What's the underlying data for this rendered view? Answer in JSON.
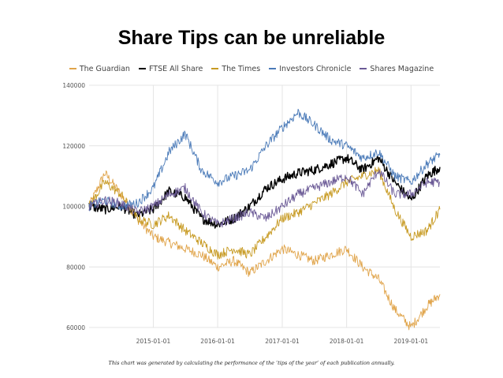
{
  "title": "Share Tips can be unreliable",
  "caption": "This chart was generated by calculating the performance of the ‘tips of the year’ of each publication annually.",
  "chart_data": {
    "type": "line",
    "title": "Share Tips can be unreliable",
    "xlabel": "",
    "ylabel": "",
    "xlim": [
      "2014-01-02",
      "2019-06-14"
    ],
    "ylim": [
      60000,
      140000
    ],
    "grid": true,
    "legend_position": "top-center",
    "x_ticks": [
      "2015-01-01",
      "2016-01-01",
      "2017-01-01",
      "2018-01-01",
      "2019-01-01"
    ],
    "y_ticks": [
      60000,
      80000,
      100000,
      120000,
      140000
    ],
    "series": [
      {
        "name": "The Guardian",
        "color": "#e0a44a",
        "x": [
          "2014-01-02",
          "2014-04-01",
          "2014-07-01",
          "2014-10-01",
          "2015-01-01",
          "2015-04-01",
          "2015-07-01",
          "2015-10-01",
          "2016-01-01",
          "2016-04-01",
          "2016-07-01",
          "2016-10-01",
          "2017-01-01",
          "2017-04-01",
          "2017-07-01",
          "2017-10-01",
          "2018-01-01",
          "2018-04-01",
          "2018-07-01",
          "2018-10-01",
          "2019-01-01",
          "2019-04-01",
          "2019-06-14"
        ],
        "values": [
          100000,
          111000,
          104000,
          96000,
          90000,
          88000,
          86000,
          84000,
          80000,
          82000,
          78000,
          82000,
          86000,
          84000,
          82000,
          84000,
          86000,
          80000,
          76000,
          66000,
          60000,
          67000,
          71000
        ]
      },
      {
        "name": "FTSE All Share",
        "color": "#000000",
        "x": [
          "2014-01-02",
          "2014-04-01",
          "2014-07-01",
          "2014-10-01",
          "2015-01-01",
          "2015-04-01",
          "2015-07-01",
          "2015-10-01",
          "2016-01-01",
          "2016-04-01",
          "2016-07-01",
          "2016-10-01",
          "2017-01-01",
          "2017-04-01",
          "2017-07-01",
          "2017-10-01",
          "2018-01-01",
          "2018-04-01",
          "2018-07-01",
          "2018-10-01",
          "2019-01-01",
          "2019-04-01",
          "2019-06-14"
        ],
        "values": [
          100000,
          99000,
          100000,
          97000,
          99000,
          105000,
          103000,
          96000,
          94000,
          96000,
          100000,
          106000,
          109000,
          111000,
          112000,
          114000,
          116000,
          112000,
          116000,
          108000,
          102000,
          110000,
          113000
        ]
      },
      {
        "name": "The Times",
        "color": "#c79a22",
        "x": [
          "2014-01-02",
          "2014-04-01",
          "2014-07-01",
          "2014-10-01",
          "2015-01-01",
          "2015-04-01",
          "2015-07-01",
          "2015-10-01",
          "2016-01-01",
          "2016-04-01",
          "2016-07-01",
          "2016-10-01",
          "2017-01-01",
          "2017-04-01",
          "2017-07-01",
          "2017-10-01",
          "2018-01-01",
          "2018-04-01",
          "2018-07-01",
          "2018-10-01",
          "2019-01-01",
          "2019-04-01",
          "2019-06-14"
        ],
        "values": [
          100000,
          108000,
          104000,
          96000,
          94000,
          97000,
          92000,
          88000,
          84000,
          86000,
          84000,
          90000,
          96000,
          98000,
          101000,
          104000,
          108000,
          110000,
          112000,
          99000,
          90000,
          92000,
          99000
        ]
      },
      {
        "name": "Investors Chronicle",
        "color": "#4a7ab8",
        "x": [
          "2014-01-02",
          "2014-04-01",
          "2014-07-01",
          "2014-10-01",
          "2015-01-01",
          "2015-04-01",
          "2015-07-01",
          "2015-10-01",
          "2016-01-01",
          "2016-04-01",
          "2016-07-01",
          "2016-10-01",
          "2017-01-01",
          "2017-04-01",
          "2017-07-01",
          "2017-10-01",
          "2018-01-01",
          "2018-04-01",
          "2018-07-01",
          "2018-10-01",
          "2019-01-01",
          "2019-04-01",
          "2019-06-14"
        ],
        "values": [
          100000,
          102000,
          100000,
          101000,
          106000,
          118000,
          124000,
          112000,
          108000,
          110000,
          112000,
          120000,
          126000,
          131000,
          127000,
          122000,
          120000,
          116000,
          118000,
          110000,
          108000,
          114000,
          117000
        ]
      },
      {
        "name": "Shares Magazine",
        "color": "#6b5a96",
        "x": [
          "2014-01-02",
          "2014-04-01",
          "2014-07-01",
          "2014-10-01",
          "2015-01-01",
          "2015-04-01",
          "2015-07-01",
          "2015-10-01",
          "2016-01-01",
          "2016-04-01",
          "2016-07-01",
          "2016-10-01",
          "2017-01-01",
          "2017-04-01",
          "2017-07-01",
          "2017-10-01",
          "2018-01-01",
          "2018-04-01",
          "2018-07-01",
          "2018-10-01",
          "2019-01-01",
          "2019-04-01",
          "2019-06-14"
        ],
        "values": [
          100000,
          102000,
          101000,
          98000,
          100000,
          104000,
          106000,
          98000,
          94000,
          96000,
          98000,
          96000,
          100000,
          104000,
          106000,
          108000,
          110000,
          104000,
          112000,
          104000,
          104000,
          108000,
          108000
        ]
      }
    ]
  }
}
